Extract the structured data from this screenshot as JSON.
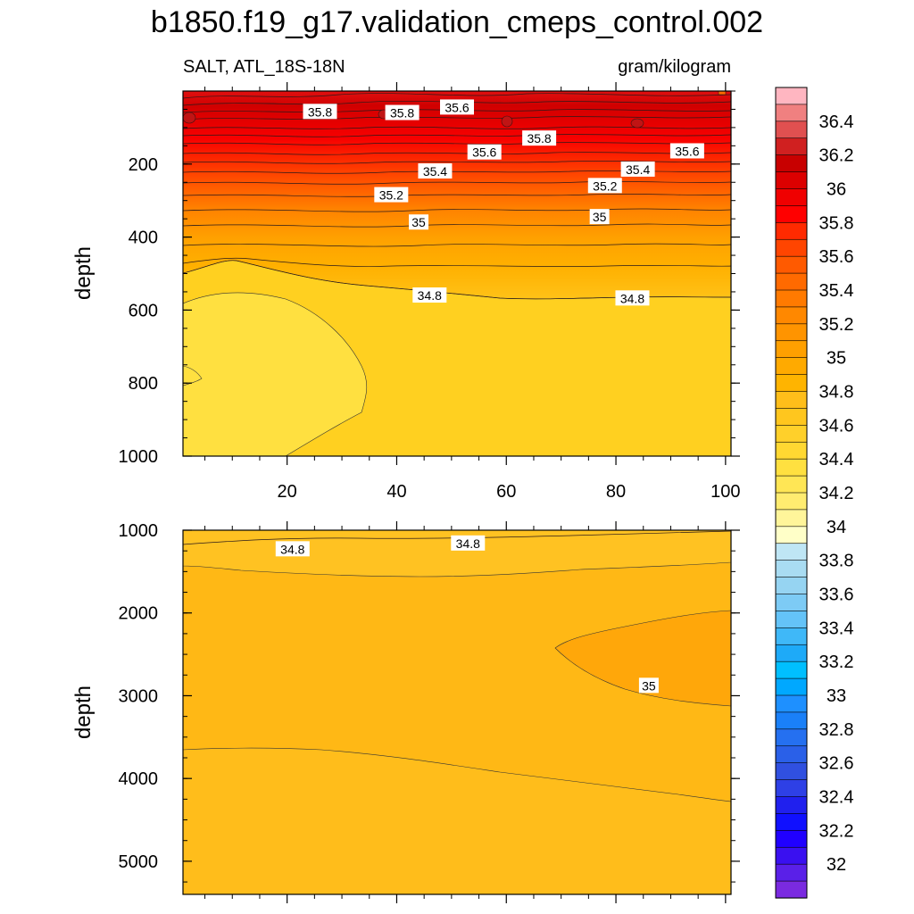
{
  "title": "b1850.f19_g17.validation_cmeps_control.002",
  "variable_label": "SALT, ATL_18S-18N",
  "units_label": "gram/kilogram",
  "chart_data": [
    {
      "type": "contour",
      "name": "upper-panel",
      "xlim": [
        1,
        101
      ],
      "ylim": [
        1000,
        0
      ],
      "ylabel": "depth",
      "x_ticks": [
        "20",
        "40",
        "60",
        "80",
        "100"
      ],
      "y_ticks": [
        "200",
        "400",
        "600",
        "800",
        "1000"
      ],
      "x_tick_values": [
        20,
        40,
        60,
        80,
        100
      ],
      "y_tick_values": [
        200,
        400,
        600,
        800,
        1000
      ],
      "contour_labels": [
        {
          "text": "35.8",
          "x": 26,
          "y": 57
        },
        {
          "text": "35.8",
          "x": 41,
          "y": 60
        },
        {
          "text": "35.6",
          "x": 51,
          "y": 45
        },
        {
          "text": "35.8",
          "x": 66,
          "y": 130
        },
        {
          "text": "35.6",
          "x": 56,
          "y": 168
        },
        {
          "text": "35.6",
          "x": 93,
          "y": 165
        },
        {
          "text": "35.4",
          "x": 47,
          "y": 220
        },
        {
          "text": "35.4",
          "x": 84,
          "y": 215
        },
        {
          "text": "35.2",
          "x": 39,
          "y": 285
        },
        {
          "text": "35.2",
          "x": 78,
          "y": 260
        },
        {
          "text": "35",
          "x": 44,
          "y": 360
        },
        {
          "text": "35",
          "x": 77,
          "y": 345
        },
        {
          "text": "34.8",
          "x": 46,
          "y": 560
        },
        {
          "text": "34.8",
          "x": 83,
          "y": 568
        }
      ]
    },
    {
      "type": "contour",
      "name": "lower-panel",
      "xlim": [
        1,
        101
      ],
      "ylim": [
        5400,
        1000
      ],
      "ylabel": "depth",
      "y_ticks": [
        "1000",
        "2000",
        "3000",
        "4000",
        "5000"
      ],
      "y_tick_values": [
        1000,
        2000,
        3000,
        4000,
        5000
      ],
      "contour_labels": [
        {
          "text": "34.8",
          "x": 21,
          "y": 1230
        },
        {
          "text": "34.8",
          "x": 53,
          "y": 1160
        },
        {
          "text": "35",
          "x": 86,
          "y": 2880
        }
      ]
    }
  ],
  "colorbar": {
    "labels": [
      "36.4",
      "36.2",
      "36",
      "35.8",
      "35.6",
      "35.4",
      "35.2",
      "35",
      "34.8",
      "34.6",
      "34.4",
      "34.2",
      "34",
      "33.8",
      "33.6",
      "33.4",
      "33.2",
      "33",
      "32.8",
      "32.6",
      "32.4",
      "32.2",
      "32"
    ],
    "colors": [
      "#ffb6c1",
      "#f08080",
      "#e05050",
      "#d02020",
      "#c80000",
      "#dc0000",
      "#f00000",
      "#ff0000",
      "#ff2a00",
      "#ff4500",
      "#ff5a00",
      "#ff6a00",
      "#ff7a00",
      "#ff8800",
      "#ff9400",
      "#ffa000",
      "#ffaa00",
      "#ffb400",
      "#ffbe1a",
      "#ffc61e",
      "#ffd02a",
      "#ffd832",
      "#ffe040",
      "#ffe655",
      "#ffec70",
      "#fff59a",
      "#ffffc8",
      "#bfe6f5",
      "#a9dcf2",
      "#96d4f2",
      "#7dcbf5",
      "#64c3f8",
      "#3fb8f8",
      "#1eaaf8",
      "#00bfff",
      "#00a8ff",
      "#1e90ff",
      "#1a80f8",
      "#2570f0",
      "#2a60e8",
      "#3050e0",
      "#2e40e6",
      "#2020ee",
      "#1010ff",
      "#2000ff",
      "#3a10f0",
      "#5a20e8",
      "#7a2ae0"
    ]
  },
  "colors": {
    "upper_fill_deep": "#ffe040",
    "upper_fill_mid": "#ffd020",
    "upper_fill_base": "#ffc619",
    "lower_fill": "#ffb815",
    "lower_fill_core": "#ffa70a",
    "lower_fill_top": "#ffc222"
  }
}
